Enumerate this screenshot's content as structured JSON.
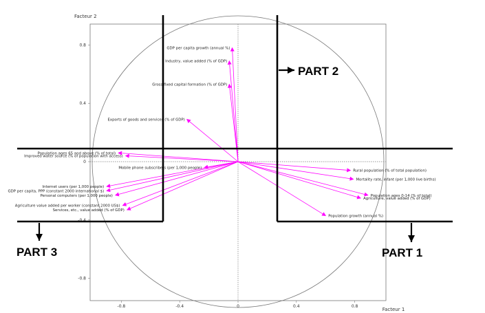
{
  "chart_data": {
    "type": "scatter",
    "subtype": "correlation-circle",
    "xlabel": "Facteur 1",
    "ylabel": "Facteur 2",
    "xlim": [
      -1.02,
      1.02
    ],
    "ylim": [
      -0.98,
      0.98
    ],
    "x_ticks": [
      "-0.8",
      "-0.4",
      "0",
      "0.4",
      "0.8"
    ],
    "y_ticks": [
      "0.8",
      "0.4",
      "0",
      "-0.4",
      "-0.8"
    ],
    "grid": false,
    "vector_color": "#ff00ff",
    "vectors": [
      {
        "label": "GDP per capita growth (annual %)",
        "x": -0.04,
        "y": 0.78
      },
      {
        "label": "Industry, value added (% of GDP)",
        "x": -0.06,
        "y": 0.69
      },
      {
        "label": "Gross fixed capital formation (% of GDP)",
        "x": -0.06,
        "y": 0.53
      },
      {
        "label": "Exports of goods and services (% of GDP)",
        "x": -0.35,
        "y": 0.29
      },
      {
        "label": "Population ages 65 and above (% of total)",
        "x": -0.82,
        "y": 0.06
      },
      {
        "label": "Improved water source (% of population with access)",
        "x": -0.77,
        "y": 0.04
      },
      {
        "label": "Mobile phone subscribers (per 1,000 people)",
        "x": -0.23,
        "y": -0.04
      },
      {
        "label": "Internet users (per 1,000 people)",
        "x": -0.9,
        "y": -0.17
      },
      {
        "label": "GDP per capita, PPP (constant 2000 international $)",
        "x": -0.9,
        "y": -0.2
      },
      {
        "label": "Personal computers (per 1,000 people)",
        "x": -0.84,
        "y": -0.23
      },
      {
        "label": "Agriculture value added per worker (constant 2000 US$)",
        "x": -0.79,
        "y": -0.3
      },
      {
        "label": "Services, etc., value added (% of GDP)",
        "x": -0.76,
        "y": -0.33
      },
      {
        "label": "Rural population (% of total population)",
        "x": 0.77,
        "y": -0.06
      },
      {
        "label": "Mortality rate, infant (per 1,000 live births)",
        "x": 0.79,
        "y": -0.12
      },
      {
        "label": "Population ages 0-14 (% of total)",
        "x": 0.89,
        "y": -0.23
      },
      {
        "label": "Agriculture, value added (% of GDP)",
        "x": 0.84,
        "y": -0.25
      },
      {
        "label": "Population growth (annual %)",
        "x": 0.6,
        "y": -0.37
      }
    ],
    "annotations": [
      {
        "label": "PART 2",
        "position": "upper-right"
      },
      {
        "label": "PART 3",
        "position": "lower-left"
      },
      {
        "label": "PART 1",
        "position": "lower-right"
      }
    ]
  },
  "labels": {
    "x_axis": "Facteur 1",
    "y_axis": "Facteur 2",
    "part1": "PART 1",
    "part2": "PART 2",
    "part3": "PART 3",
    "y_zero_tick": "0"
  }
}
